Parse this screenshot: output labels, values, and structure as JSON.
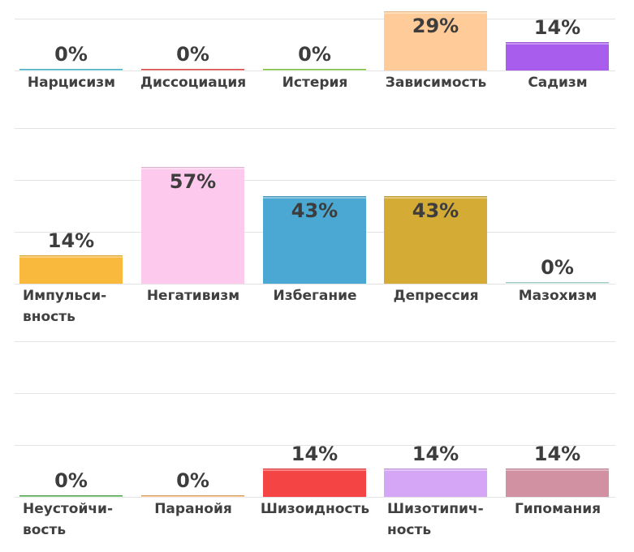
{
  "chart_data": {
    "type": "bar",
    "ylim": [
      0,
      100
    ],
    "grid": true,
    "rows": [
      {
        "items": [
          {
            "label": "Нарцисизм",
            "value": 0,
            "display": "0%",
            "color": "#4fc3d9"
          },
          {
            "label": "Диссоциация",
            "value": 0,
            "display": "0%",
            "color": "#ef5350"
          },
          {
            "label": "Истерия",
            "value": 0,
            "display": "0%",
            "color": "#8bd44a"
          },
          {
            "label": "Зависимость",
            "value": 29,
            "display": "29%",
            "color": "#ffcc99"
          },
          {
            "label": "Садизм",
            "value": 14,
            "display": "14%",
            "color": "#a95ded"
          }
        ]
      },
      {
        "items": [
          {
            "label": "Импульси-\nвность",
            "value": 14,
            "display": "14%",
            "color": "#f9b93c"
          },
          {
            "label": "Негативизм",
            "value": 57,
            "display": "57%",
            "color": "#fdc9ec"
          },
          {
            "label": "Избегание",
            "value": 43,
            "display": "43%",
            "color": "#4aa8d3"
          },
          {
            "label": "Депрессия",
            "value": 43,
            "display": "43%",
            "color": "#d4ab35"
          },
          {
            "label": "Мазохизм",
            "value": 0,
            "display": "0%",
            "color": "#b9e3dc"
          }
        ]
      },
      {
        "items": [
          {
            "label": "Неустойчи-\nвость",
            "value": 0,
            "display": "0%",
            "color": "#5cb85c"
          },
          {
            "label": "Паранойя",
            "value": 0,
            "display": "0%",
            "color": "#f5b26b"
          },
          {
            "label": "Шизоидность",
            "value": 14,
            "display": "14%",
            "color": "#f44444"
          },
          {
            "label": "Шизотипич-\nность",
            "value": 14,
            "display": "14%",
            "color": "#d4a6f5"
          },
          {
            "label": "Гипомания",
            "value": 14,
            "display": "14%",
            "color": "#d291a3"
          }
        ]
      }
    ]
  }
}
